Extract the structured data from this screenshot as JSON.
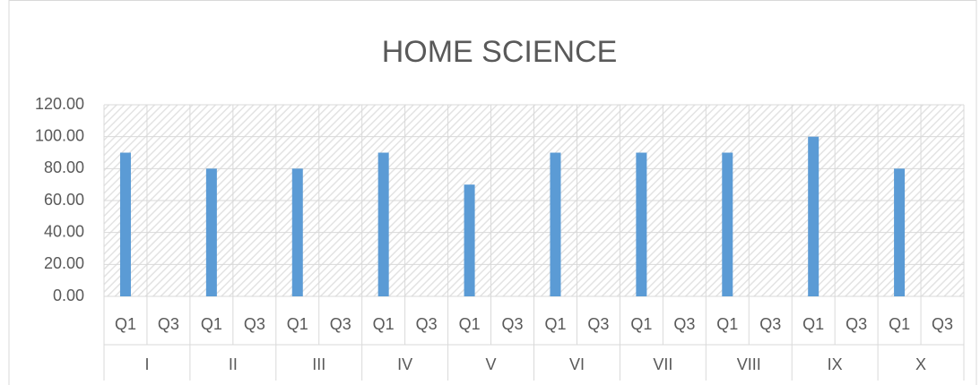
{
  "chart_data": {
    "type": "bar",
    "title": "HOME SCIENCE",
    "groups": [
      "I",
      "II",
      "III",
      "IV",
      "V",
      "VI",
      "VII",
      "VIII",
      "IX",
      "X"
    ],
    "categories": [
      "Q1",
      "Q3",
      "Q1",
      "Q3",
      "Q1",
      "Q3",
      "Q1",
      "Q3",
      "Q1",
      "Q3",
      "Q1",
      "Q3",
      "Q1",
      "Q3",
      "Q1",
      "Q3",
      "Q1",
      "Q3",
      "Q1",
      "Q3"
    ],
    "values": [
      90,
      null,
      80,
      null,
      80,
      null,
      90,
      null,
      70,
      null,
      90,
      null,
      90,
      null,
      90,
      null,
      100,
      null,
      80,
      null
    ],
    "color": "#5b9bd5",
    "ylim": [
      0,
      120
    ],
    "yticks": [
      {
        "value": 0,
        "label": "0.00"
      },
      {
        "value": 20,
        "label": "20.00"
      },
      {
        "value": 40,
        "label": "40.00"
      },
      {
        "value": 60,
        "label": "60.00"
      },
      {
        "value": 80,
        "label": "80.00"
      },
      {
        "value": 100,
        "label": "100.00"
      },
      {
        "value": 120,
        "label": "120.00"
      }
    ],
    "grid": true
  }
}
